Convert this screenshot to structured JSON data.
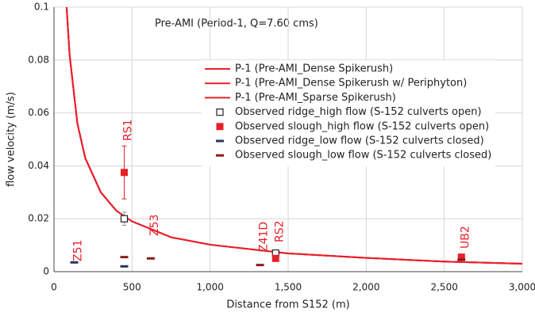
{
  "chart_data": {
    "type": "line",
    "annotation": "Pre-AMI (Period-1, Q=7.60 cms)",
    "x_label": "Distance from S152 (m)",
    "y_label": "flow velocity (m/s)",
    "xlim": [
      0,
      3000
    ],
    "ylim": [
      0,
      0.1
    ],
    "xticks": [
      0,
      500,
      {
        "value": 1000,
        "label": "1,000"
      },
      {
        "value": 1500,
        "label": "1,500"
      },
      {
        "value": 2000,
        "label": "2,000"
      },
      {
        "value": 2500,
        "label": "2,500"
      },
      {
        "value": 3000,
        "label": "3,000"
      }
    ],
    "yticks": [
      0,
      0.02,
      0.04,
      0.06,
      0.08,
      0.1
    ],
    "grid": true,
    "series": [
      {
        "name": "P-1 (Pre-AMI_Dense Spikerush)",
        "type": "line",
        "color": "#e8202a",
        "x": [
          81,
          100,
          150,
          200,
          300,
          400,
          500,
          750,
          1000,
          1500,
          2000,
          2500,
          3000
        ],
        "values": [
          0.1,
          0.082,
          0.056,
          0.043,
          0.03,
          0.023,
          0.019,
          0.013,
          0.0102,
          0.0069,
          0.0052,
          0.0038,
          0.003
        ]
      },
      {
        "name": "P-1 (Pre-AMI_Dense Spikerush w/ Periphyton)",
        "type": "line",
        "color": "#e8202a",
        "x": [
          81,
          100,
          150,
          200,
          300,
          400,
          500,
          750,
          1000,
          1500,
          2000,
          2500,
          3000
        ],
        "values": [
          0.1,
          0.082,
          0.056,
          0.043,
          0.03,
          0.023,
          0.019,
          0.013,
          0.0102,
          0.0069,
          0.0052,
          0.0038,
          0.003
        ]
      },
      {
        "name": "P-1 (Pre-AMI_Sparse Spikerush)",
        "type": "line",
        "color": "#e8202a",
        "x": [
          81,
          100,
          150,
          200,
          300,
          400,
          500,
          750,
          1000,
          1500,
          2000,
          2500,
          3000
        ],
        "values": [
          0.1,
          0.082,
          0.056,
          0.043,
          0.03,
          0.023,
          0.019,
          0.013,
          0.0102,
          0.0069,
          0.0052,
          0.0038,
          0.003
        ]
      },
      {
        "name": "Observed ridge_high flow (S-152 culverts open)",
        "type": "scatter",
        "marker": "open-square",
        "color": "#222222",
        "x": [
          450,
          1420
        ],
        "values": [
          0.02,
          0.007
        ],
        "errors": [
          0.0025,
          null
        ]
      },
      {
        "name": "Observed slough_high flow (S-152 culverts open)",
        "type": "scatter",
        "marker": "filled-square",
        "color": "#e8202a",
        "x": [
          450,
          1420,
          2610
        ],
        "values": [
          0.0375,
          0.005,
          0.0055
        ],
        "errors": [
          0.01,
          null,
          null
        ]
      },
      {
        "name": "Observed ridge_low flow (S-152 culverts closed)",
        "type": "scatter",
        "marker": "dash",
        "color": "#2a3560",
        "x": [
          130,
          450
        ],
        "values": [
          0.0035,
          0.002
        ]
      },
      {
        "name": "Observed slough_low flow (S-152 culverts closed)",
        "type": "scatter",
        "marker": "dash",
        "color": "#8b1a1a",
        "x": [
          450,
          620,
          1320,
          2610
        ],
        "values": [
          0.0055,
          0.005,
          0.0025,
          0.0045
        ]
      }
    ],
    "stations": [
      {
        "label": "Z51",
        "x": 130
      },
      {
        "label": "RS1",
        "x": 450
      },
      {
        "label": "Z53",
        "x": 620
      },
      {
        "label": "Z41D",
        "x": 1320
      },
      {
        "label": "RS2",
        "x": 1420
      },
      {
        "label": "UB2",
        "x": 2610
      }
    ]
  }
}
